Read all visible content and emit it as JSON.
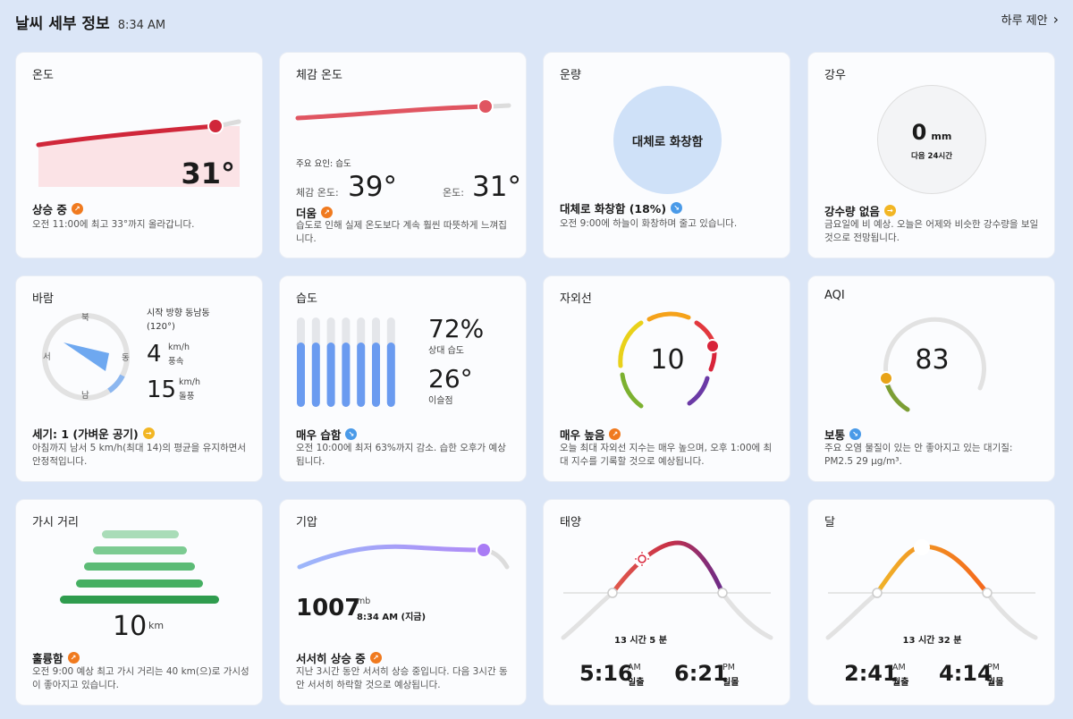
{
  "header": {
    "title": "날씨 세부 정보",
    "time": "8:34 AM",
    "suggest": "하루 제안"
  },
  "temperature": {
    "title": "온도",
    "value": "31°",
    "status": "상승 중",
    "desc": "오전 11:00에 최고 33°까지 올라갑니다.",
    "icon": "trend-up-icon"
  },
  "feels_like": {
    "title": "체감 온도",
    "factor": "주요 요인: 습도",
    "feels_label": "체감 온도:",
    "feels_value": "39°",
    "temp_label": "온도:",
    "temp_value": "31°",
    "status": "더움",
    "desc": "습도로 인해 실제 온도보다 계속 훨씬 따뜻하게 느껴집니다.",
    "icon": "trend-up-icon"
  },
  "cloud": {
    "title": "운량",
    "circle": "대체로 화창함",
    "status": "대체로 화창함 (18%)",
    "desc": "오전 9:00에 하늘이 화창하며 줄고 있습니다.",
    "icon": "trend-down-icon",
    "percent": 18
  },
  "rain": {
    "title": "강우",
    "amount": "0",
    "unit": "mm",
    "period": "다음 24시간",
    "status": "강수량 없음",
    "desc": "금요일에 비 예상. 오늘은 어제와 비슷한 강수량을 보일 것으로 전망됩니다.",
    "icon": "trend-flat-icon"
  },
  "wind": {
    "title": "바람",
    "compass": {
      "n": "북",
      "e": "동",
      "s": "남",
      "w": "서"
    },
    "direction": "시작 방향 동남동 (120°)",
    "speed": "4",
    "speed_unit": "km/h",
    "speed_label": "풍속",
    "gust": "15",
    "gust_unit": "km/h",
    "gust_label": "돌풍",
    "status": "세기: 1 (가벼운 공기)",
    "desc": "아침까지 남서 5 km/h(최대 14)의 평균을 유지하면서 안정적입니다.",
    "icon": "trend-flat-icon",
    "degrees": 120
  },
  "humidity": {
    "title": "습도",
    "value": "72%",
    "value_label": "상대 습도",
    "dew": "26°",
    "dew_label": "이슬점",
    "status": "매우 습함",
    "desc": "오전 10:00에 최저 63%까지 감소. 습한 오후가 예상됩니다.",
    "icon": "trend-down-icon",
    "percent": 72
  },
  "uv": {
    "title": "자외선",
    "value": "10",
    "status": "매우 높음",
    "desc": "오늘 최대 자외선 지수는 매우 높으며, 오후 1:00에 최대 지수를 기록할 것으로 예상됩니다.",
    "icon": "trend-up-icon"
  },
  "aqi": {
    "title": "AQI",
    "value": "83",
    "status": "보통",
    "desc": "주요 오염 물질이 있는 안 좋아지고 있는 대기질: PM2.5 29 μg/m³.",
    "icon": "trend-down-icon"
  },
  "visibility": {
    "title": "가시 거리",
    "value": "10",
    "unit": "km",
    "status": "훌륭함",
    "desc": "오전 9:00 예상 최고 가시 거리는 40 km(으)로 가시성이 좋아지고 있습니다.",
    "icon": "trend-up-icon"
  },
  "pressure": {
    "title": "기압",
    "value": "1007",
    "unit": "mb",
    "time": "8:34 AM (지금)",
    "status": "서서히 상승 중",
    "desc": "지난 3시간 동안 서서히 상승 중입니다. 다음 3시간 동안 서서히 하락할 것으로 예상됩니다.",
    "icon": "trend-up-icon"
  },
  "sun": {
    "title": "태양",
    "duration": "13 시간 5 분",
    "rise": "5:16",
    "rise_ampm": "AM",
    "rise_label": "일출",
    "set": "6:21",
    "set_ampm": "PM",
    "set_label": "일몰"
  },
  "moon": {
    "title": "달",
    "duration": "13 시간 32 분",
    "rise": "2:41",
    "rise_ampm": "AM",
    "rise_label": "월출",
    "set": "4:14",
    "set_ampm": "PM",
    "set_label": "월몰"
  },
  "colors": {
    "temp_red": "#d0273a",
    "feels_red": "#e05561",
    "sky_blue": "#cfe1f8",
    "humidity_blue": "#6a9bf0",
    "aqi_yellow": "#e8a317",
    "pressure_purple": "#a97cf5",
    "vis_green": "#3aa95a"
  }
}
